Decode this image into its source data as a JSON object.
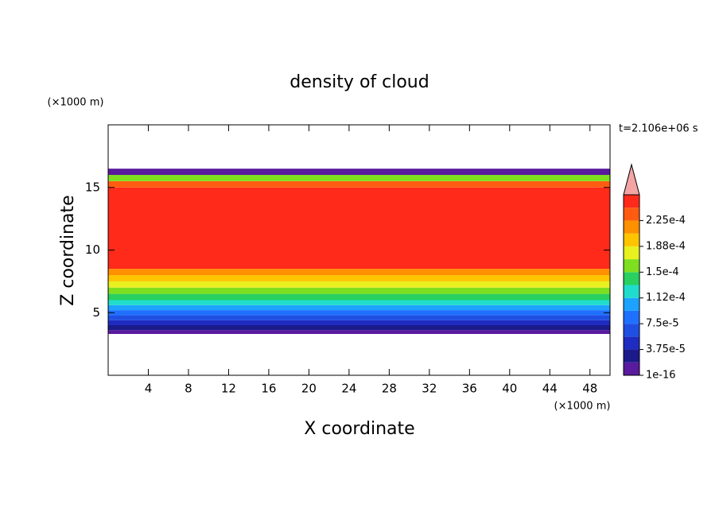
{
  "chart_data": {
    "type": "contour",
    "title": "density of cloud",
    "x_label": "X coordinate",
    "y_label": "Z coordinate",
    "x_unit": "(×1000 m)",
    "y_unit": "(×1000 m)",
    "time_label": "t=2.106e+06 s",
    "xlim": [
      0,
      50
    ],
    "xticks": [
      4,
      8,
      12,
      16,
      20,
      24,
      28,
      32,
      36,
      40,
      44,
      48
    ],
    "ylim": [
      0,
      20
    ],
    "yticks": [
      5,
      10,
      15
    ],
    "colorbar": {
      "levels": [
        1e-16,
        1.875e-05,
        3.75e-05,
        5.625e-05,
        7.5e-05,
        9.375e-05,
        0.0001125,
        0.00013125,
        0.00015,
        0.00016875,
        0.0001875,
        0.00020625,
        0.000225,
        0.00024375,
        0.0002625
      ],
      "colors": [
        "#5a1a9e",
        "#1c1a8a",
        "#1e2cc0",
        "#1f4fe2",
        "#2070ff",
        "#1ea2ff",
        "#20dccd",
        "#28d060",
        "#7ede20",
        "#e8f020",
        "#ffc400",
        "#ff9000",
        "#ff5c12",
        "#ff2a1a"
      ],
      "over_color": "#f4a4a4",
      "ticks": [
        {
          "value": 1e-16,
          "label": "1e-16"
        },
        {
          "value": 3.75e-05,
          "label": "3.75e-5"
        },
        {
          "value": 7.5e-05,
          "label": "7.5e-5"
        },
        {
          "value": 0.0001125,
          "label": "1.12e-4"
        },
        {
          "value": 0.00015,
          "label": "1.5e-4"
        },
        {
          "value": 0.0001875,
          "label": "1.88e-4"
        },
        {
          "value": 0.000225,
          "label": "2.25e-4"
        }
      ]
    },
    "profile": {
      "z_edges": [
        3.3,
        3.6,
        4.0,
        4.4,
        4.8,
        5.2,
        5.6,
        6.0,
        6.5,
        7.0,
        7.5,
        8.0,
        8.5,
        15.0,
        15.5,
        16.0,
        16.5
      ],
      "values": [
        1e-16,
        2e-05,
        4e-05,
        6e-05,
        8e-05,
        0.0001,
        0.00012,
        0.00014,
        0.00016,
        0.00018,
        0.0002,
        0.00022,
        0.000245,
        0.00023,
        0.00015,
        1e-16
      ]
    }
  }
}
